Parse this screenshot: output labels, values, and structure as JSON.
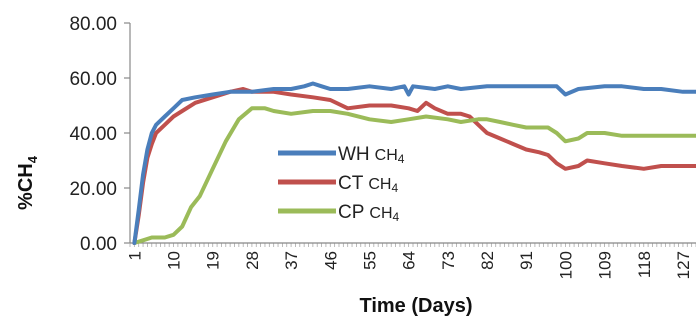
{
  "chart_data": {
    "type": "line",
    "title": "",
    "xlabel": "Time (Days)",
    "ylabel": "%CH4",
    "ylabel_main": "%CH",
    "ylabel_sub": "4",
    "ylim": [
      0,
      80
    ],
    "y_ticks": [
      "0.00",
      "20.00",
      "40.00",
      "60.00",
      "80.00"
    ],
    "y_tick_values": [
      0,
      20,
      40,
      60,
      80
    ],
    "x_ticks": [
      "1",
      "10",
      "19",
      "28",
      "37",
      "46",
      "55",
      "64",
      "73",
      "82",
      "91",
      "100",
      "109",
      "118",
      "127"
    ],
    "x_tick_values": [
      1,
      10,
      19,
      28,
      37,
      46,
      55,
      64,
      73,
      82,
      91,
      100,
      109,
      118,
      127
    ],
    "xlim": [
      0,
      130
    ],
    "grid": false,
    "legend_position": "center",
    "series": [
      {
        "name": "WH CH4",
        "label_main": "WH",
        "label_sub": "CH",
        "label_sub2": "4",
        "color": "#4a7ebb",
        "x": [
          1,
          2,
          3,
          4,
          5,
          6,
          8,
          10,
          12,
          15,
          19,
          23,
          28,
          33,
          37,
          40,
          42,
          44,
          46,
          50,
          55,
          60,
          63,
          64,
          65,
          70,
          73,
          76,
          82,
          85,
          91,
          96,
          98,
          100,
          103,
          109,
          113,
          118,
          122,
          127,
          130
        ],
        "y": [
          0,
          12,
          25,
          34,
          40,
          43,
          46,
          49,
          52,
          53,
          54,
          55,
          55,
          56,
          56,
          57,
          58,
          57,
          56,
          56,
          57,
          56,
          57,
          54,
          57,
          56,
          57,
          56,
          57,
          57,
          57,
          57,
          57,
          54,
          56,
          57,
          57,
          56,
          56,
          55,
          55
        ]
      },
      {
        "name": "CT CH4",
        "label_main": "CT",
        "label_sub": "CH",
        "label_sub2": "4",
        "color": "#c0504d",
        "x": [
          1,
          2,
          3,
          4,
          5,
          6,
          8,
          10,
          12,
          15,
          19,
          23,
          26,
          28,
          33,
          37,
          42,
          46,
          50,
          55,
          60,
          64,
          66,
          68,
          70,
          73,
          76,
          78,
          80,
          82,
          85,
          88,
          91,
          94,
          96,
          98,
          100,
          103,
          105,
          109,
          113,
          118,
          122,
          127,
          130
        ],
        "y": [
          0,
          10,
          22,
          31,
          36,
          40,
          43,
          46,
          48,
          51,
          53,
          55,
          56,
          55,
          55,
          54,
          53,
          52,
          49,
          50,
          50,
          49,
          48,
          51,
          49,
          47,
          47,
          46,
          43,
          40,
          38,
          36,
          34,
          33,
          32,
          29,
          27,
          28,
          30,
          29,
          28,
          27,
          28,
          28,
          28
        ]
      },
      {
        "name": "CP CH4",
        "label_main": "CP",
        "label_sub": "CH",
        "label_sub2": "4",
        "color": "#9bbb59",
        "x": [
          1,
          3,
          5,
          8,
          10,
          12,
          14,
          16,
          19,
          22,
          25,
          28,
          31,
          33,
          37,
          42,
          46,
          50,
          55,
          60,
          64,
          68,
          73,
          76,
          80,
          82,
          85,
          88,
          91,
          94,
          96,
          98,
          100,
          103,
          105,
          109,
          113,
          118,
          122,
          127,
          130
        ],
        "y": [
          0,
          1,
          2,
          2,
          3,
          6,
          13,
          17,
          27,
          37,
          45,
          49,
          49,
          48,
          47,
          48,
          48,
          47,
          45,
          44,
          45,
          46,
          45,
          44,
          45,
          45,
          44,
          43,
          42,
          42,
          42,
          40,
          37,
          38,
          40,
          40,
          39,
          39,
          39,
          39,
          39
        ]
      }
    ]
  }
}
